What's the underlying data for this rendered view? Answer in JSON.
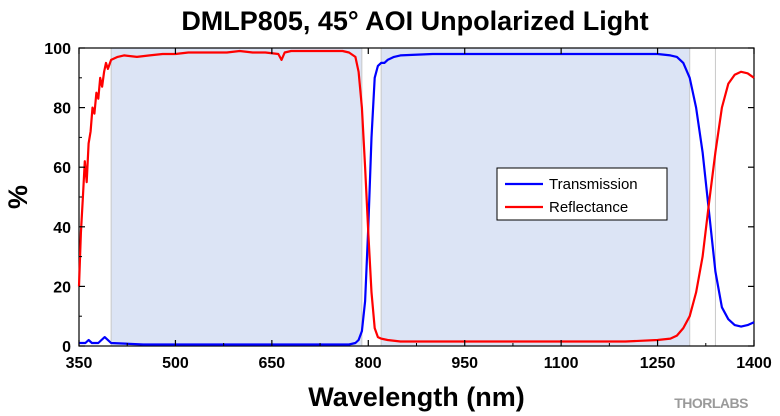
{
  "chart_data": {
    "type": "line",
    "title": "DMLP805, 45° AOI Unpolarized Light",
    "xlabel": "Wavelength (nm)",
    "ylabel": "%",
    "xlim": [
      350,
      1400
    ],
    "ylim": [
      0,
      100
    ],
    "xticks": [
      350,
      500,
      650,
      800,
      950,
      1100,
      1250,
      1400
    ],
    "xtick_labels": [
      "350",
      "500",
      "650",
      "800",
      "950",
      "1100",
      "1250",
      "1400"
    ],
    "yticks": [
      0,
      20,
      40,
      60,
      80,
      100
    ],
    "ytick_labels": [
      "0",
      "20",
      "40",
      "60",
      "80",
      "100"
    ],
    "shaded_bands": [
      [
        400,
        790
      ],
      [
        820,
        1300
      ]
    ],
    "band_color": "#dce4f5",
    "legend_position": "right-middle",
    "grid": false,
    "series": [
      {
        "name": "Transmission",
        "color": "#0000ff",
        "x": [
          350,
          360,
          365,
          370,
          375,
          380,
          385,
          390,
          400,
          450,
          500,
          550,
          600,
          650,
          700,
          750,
          770,
          780,
          785,
          790,
          795,
          800,
          805,
          810,
          815,
          820,
          825,
          830,
          840,
          850,
          900,
          950,
          1000,
          1050,
          1100,
          1150,
          1200,
          1250,
          1270,
          1280,
          1290,
          1300,
          1310,
          1320,
          1330,
          1340,
          1350,
          1360,
          1370,
          1380,
          1390,
          1400
        ],
        "y": [
          1,
          1,
          2,
          1,
          1,
          1,
          2,
          3,
          1,
          0.5,
          0.5,
          0.5,
          0.5,
          0.5,
          0.5,
          0.5,
          0.5,
          1,
          2,
          5,
          15,
          40,
          70,
          90,
          94,
          95,
          95,
          96,
          97,
          97.5,
          98,
          98,
          98,
          98,
          98,
          98,
          98,
          98,
          97.5,
          97,
          95,
          90,
          80,
          65,
          45,
          25,
          13,
          9,
          7,
          6.5,
          7,
          8
        ]
      },
      {
        "name": "Reflectance",
        "color": "#ff0000",
        "x": [
          350,
          353,
          356,
          359,
          362,
          365,
          368,
          371,
          374,
          377,
          380,
          383,
          386,
          389,
          392,
          395,
          400,
          410,
          420,
          440,
          460,
          480,
          500,
          520,
          540,
          560,
          580,
          600,
          620,
          640,
          660,
          665,
          670,
          680,
          700,
          720,
          740,
          760,
          770,
          780,
          785,
          790,
          795,
          800,
          805,
          810,
          815,
          820,
          830,
          850,
          900,
          950,
          1000,
          1050,
          1100,
          1150,
          1200,
          1250,
          1270,
          1280,
          1290,
          1300,
          1310,
          1320,
          1330,
          1340,
          1350,
          1360,
          1370,
          1380,
          1390,
          1400
        ],
        "y": [
          20,
          38,
          50,
          62,
          55,
          68,
          72,
          80,
          78,
          85,
          83,
          90,
          87,
          92,
          95,
          93,
          96,
          97,
          97.5,
          97,
          97.5,
          98,
          98,
          98.5,
          98.5,
          98.5,
          98.5,
          99,
          98.5,
          98.5,
          98,
          96,
          98.5,
          99,
          99,
          99,
          99,
          99,
          98.5,
          97,
          92,
          80,
          60,
          38,
          18,
          6,
          3,
          2.5,
          2,
          1.5,
          1.5,
          1.5,
          1.5,
          1.5,
          1.5,
          1.5,
          1.5,
          2,
          2.5,
          3.5,
          6,
          10,
          18,
          30,
          48,
          65,
          80,
          88,
          91,
          92,
          91.5,
          90
        ]
      }
    ],
    "brand_logo": "THORLABS"
  }
}
